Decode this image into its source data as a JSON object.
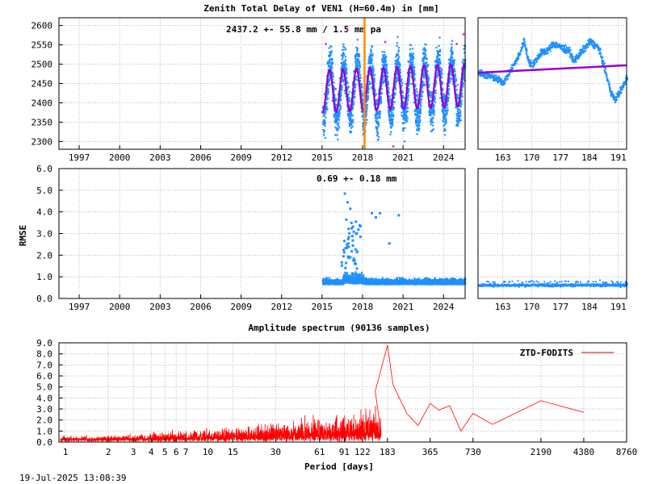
{
  "timestamp": "19-Jul-2025 13:08:39",
  "colors": {
    "data": "#1e90ff",
    "model": "#9400d3",
    "marker": "#ff8c00",
    "outlier": "#cc33cc",
    "spectrum": "#ff0000",
    "legend_line": "#cc0000"
  },
  "chart_data": [
    {
      "id": "ztd",
      "type": "scatter",
      "title": "Zenith Total Delay of VEN1 (H=60.4m) in [mm]",
      "annotation": "2437.2 +-  55.8 mm /  1.5 mm pa",
      "xlabel": "",
      "ylabel": "",
      "xlim": [
        1995.5,
        2025.6
      ],
      "ylim": [
        2280,
        2620
      ],
      "yticks": [
        2300,
        2350,
        2400,
        2450,
        2500,
        2550,
        2600
      ],
      "xticks": [
        "1997",
        "2000",
        "2003",
        "2006",
        "2009",
        "2012",
        "2015",
        "2018",
        "2021",
        "2024"
      ],
      "grid": true,
      "data_span": [
        2015.0,
        2025.55
      ],
      "series": [
        {
          "mean": 2437.2,
          "annual_amplitude": 70,
          "scatter": 50,
          "trend_per_year": 1.5
        },
        {
          "model_amplitude": 55
        }
      ],
      "vertical_marker": 2018.15
    },
    {
      "id": "ztd_zoom",
      "type": "scatter",
      "xlim": [
        157,
        193
      ],
      "ylim": [
        2280,
        2620
      ],
      "xticks": [
        "163",
        "170",
        "177",
        "184",
        "191"
      ],
      "grid": true,
      "trend_line": [
        2478,
        2497
      ]
    },
    {
      "id": "rmse",
      "type": "scatter",
      "annotation": "0.69 +-  0.18 mm",
      "ylabel": "RMSE",
      "xlim": [
        1995.5,
        2025.6
      ],
      "ylim": [
        0,
        6
      ],
      "yticks": [
        "0.0",
        "1.0",
        "2.0",
        "3.0",
        "4.0",
        "5.0",
        "6.0"
      ],
      "xticks": [
        "1997",
        "2000",
        "2003",
        "2006",
        "2009",
        "2012",
        "2015",
        "2018",
        "2021",
        "2024"
      ],
      "grid": true,
      "baseline": 0.69,
      "spikes": [
        [
          2016.6,
          4.9
        ],
        [
          2016.8,
          4.5
        ],
        [
          2017.0,
          4.2
        ],
        [
          2016.7,
          3.7
        ],
        [
          2017.1,
          3.3
        ],
        [
          2016.9,
          2.9
        ],
        [
          2017.2,
          2.5
        ],
        [
          2018.6,
          4.0
        ],
        [
          2018.9,
          3.8
        ],
        [
          2019.2,
          4.0
        ],
        [
          2020.6,
          3.9
        ],
        [
          2019.9,
          2.6
        ],
        [
          2017.5,
          2.2
        ],
        [
          2016.5,
          2.0
        ]
      ]
    },
    {
      "id": "rmse_zoom",
      "type": "scatter",
      "xlim": [
        157,
        193
      ],
      "ylim": [
        0,
        6
      ],
      "xticks": [
        "163",
        "170",
        "177",
        "184",
        "191"
      ],
      "grid": true,
      "baseline": 0.65
    },
    {
      "id": "spectrum",
      "type": "line",
      "title": "Amplitude spectrum (90136 samples)",
      "xlabel": "Period [days]",
      "xscale": "log",
      "xlim": [
        0.9,
        8760
      ],
      "ylim": [
        0,
        9
      ],
      "xticks": [
        "1",
        "2",
        "3",
        "4",
        "5",
        "6",
        "7",
        "10",
        "15",
        "30",
        "61",
        "91",
        "122",
        "183",
        "365",
        "730",
        "2190",
        "4380",
        "8760"
      ],
      "yticks": [
        "0.0",
        "1.0",
        "2.0",
        "3.0",
        "4.0",
        "5.0",
        "6.0",
        "7.0",
        "8.0",
        "9.0"
      ],
      "grid": true,
      "legend": "top-right",
      "series": [
        {
          "name": "ZTD-FODITS"
        }
      ],
      "peaks": [
        [
          183,
          8.8
        ],
        [
          200,
          5.2
        ],
        [
          150,
          4.6
        ],
        [
          250,
          2.6
        ],
        [
          300,
          1.5
        ],
        [
          365,
          3.5
        ],
        [
          420,
          2.9
        ],
        [
          500,
          3.3
        ],
        [
          600,
          1.0
        ],
        [
          730,
          2.6
        ],
        [
          1000,
          1.6
        ],
        [
          2190,
          3.75
        ],
        [
          4380,
          2.7
        ]
      ]
    }
  ]
}
